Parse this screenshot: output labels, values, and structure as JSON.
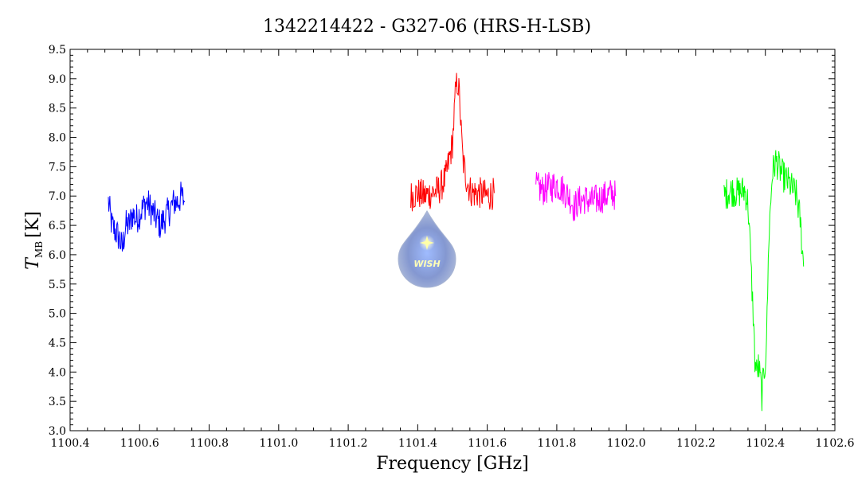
{
  "chart_data": {
    "type": "line",
    "title": "1342214422 - G327-06 (HRS-H-LSB)",
    "xlabel": "Frequency [GHz]",
    "ylabel_main": "T",
    "ylabel_sub": "MB",
    "ylabel_unit": "[K]",
    "xlim": [
      1100.4,
      1102.6
    ],
    "ylim": [
      3.0,
      9.5
    ],
    "xticks": [
      "1100.4",
      "1100.6",
      "1100.8",
      "1101.0",
      "1101.2",
      "1101.4",
      "1101.6",
      "1101.8",
      "1102.0",
      "1102.2",
      "1102.4",
      "1102.6"
    ],
    "yticks": [
      "3.0",
      "3.5",
      "4.0",
      "4.5",
      "5.0",
      "5.5",
      "6.0",
      "6.5",
      "7.0",
      "7.5",
      "8.0",
      "8.5",
      "9.0",
      "9.5"
    ],
    "grid": false,
    "series": [
      {
        "color": "#0000ff",
        "x": [
          1100.51,
          1100.52,
          1100.53,
          1100.54,
          1100.55,
          1100.56,
          1100.57,
          1100.58,
          1100.59,
          1100.6,
          1100.61,
          1100.62,
          1100.63,
          1100.64,
          1100.65,
          1100.66,
          1100.67,
          1100.68,
          1100.69,
          1100.7,
          1100.71,
          1100.72,
          1100.73
        ],
        "y": [
          6.9,
          6.5,
          6.4,
          6.3,
          6.1,
          6.5,
          6.5,
          6.7,
          6.6,
          6.7,
          6.8,
          6.9,
          6.8,
          6.7,
          6.6,
          6.5,
          6.6,
          6.7,
          6.8,
          6.9,
          6.9,
          7.0,
          6.9
        ]
      },
      {
        "color": "#ff0000",
        "x": [
          1101.38,
          1101.4,
          1101.42,
          1101.44,
          1101.46,
          1101.48,
          1101.49,
          1101.5,
          1101.505,
          1101.51,
          1101.515,
          1101.52,
          1101.525,
          1101.53,
          1101.54,
          1101.55,
          1101.56,
          1101.58,
          1101.6,
          1101.62
        ],
        "y": [
          7.0,
          7.05,
          7.0,
          7.05,
          7.1,
          7.3,
          7.6,
          7.9,
          8.4,
          8.85,
          8.95,
          8.7,
          8.1,
          7.6,
          7.3,
          7.1,
          7.05,
          7.05,
          7.0,
          7.05
        ]
      },
      {
        "color": "#ff00ff",
        "x": [
          1101.74,
          1101.76,
          1101.78,
          1101.8,
          1101.82,
          1101.84,
          1101.85,
          1101.86,
          1101.88,
          1101.9,
          1101.92,
          1101.94,
          1101.96,
          1101.97
        ],
        "y": [
          7.15,
          7.1,
          7.15,
          7.2,
          7.1,
          6.95,
          6.8,
          6.9,
          6.95,
          6.9,
          6.95,
          7.0,
          7.05,
          7.0
        ]
      },
      {
        "color": "#00ff00",
        "x": [
          1102.28,
          1102.3,
          1102.32,
          1102.34,
          1102.35,
          1102.355,
          1102.36,
          1102.365,
          1102.37,
          1102.375,
          1102.38,
          1102.385,
          1102.39,
          1102.395,
          1102.4,
          1102.405,
          1102.41,
          1102.42,
          1102.43,
          1102.45,
          1102.47,
          1102.49,
          1102.5,
          1102.51
        ],
        "y": [
          7.0,
          7.1,
          7.05,
          7.1,
          6.9,
          6.3,
          5.6,
          5.0,
          4.2,
          4.0,
          4.1,
          3.9,
          3.6,
          3.9,
          4.2,
          4.9,
          6.3,
          7.4,
          7.6,
          7.35,
          7.2,
          7.0,
          6.6,
          5.8
        ]
      }
    ],
    "logo_text": "WISH"
  }
}
